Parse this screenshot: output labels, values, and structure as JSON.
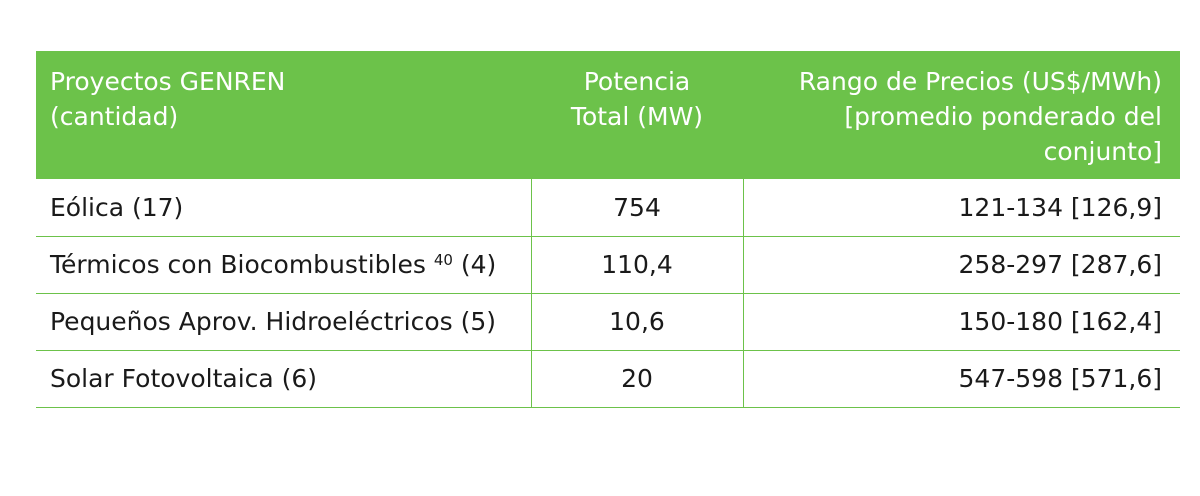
{
  "table": {
    "header": {
      "col1": [
        "Proyectos GENREN",
        "(cantidad)"
      ],
      "col2": [
        "Potencia",
        "Total (MW)"
      ],
      "col3": [
        "Rango de Precios (US$/MWh)",
        "[promedio ponderado del",
        "conjunto]"
      ]
    },
    "rows": [
      {
        "project": "Eólica (17)",
        "note": "",
        "suffix": "",
        "power": "754",
        "price": "121-134 [126,9]"
      },
      {
        "project": "Térmicos con Biocombustibles",
        "note": "40",
        "suffix": "(4)",
        "power": "110,4",
        "price": "258-297 [287,6]"
      },
      {
        "project": "Pequeños Aprov. Hidroeléctricos (5)",
        "note": "",
        "suffix": "",
        "power": "10,6",
        "price": "150-180 [162,4]"
      },
      {
        "project": "Solar Fotovoltaica (6)",
        "note": "",
        "suffix": "",
        "power": "20",
        "price": "547-598 [571,6]"
      }
    ],
    "colors": {
      "header_bg": "#6cc24a",
      "header_text": "#ffffff",
      "rule": "#6cc24a"
    }
  }
}
